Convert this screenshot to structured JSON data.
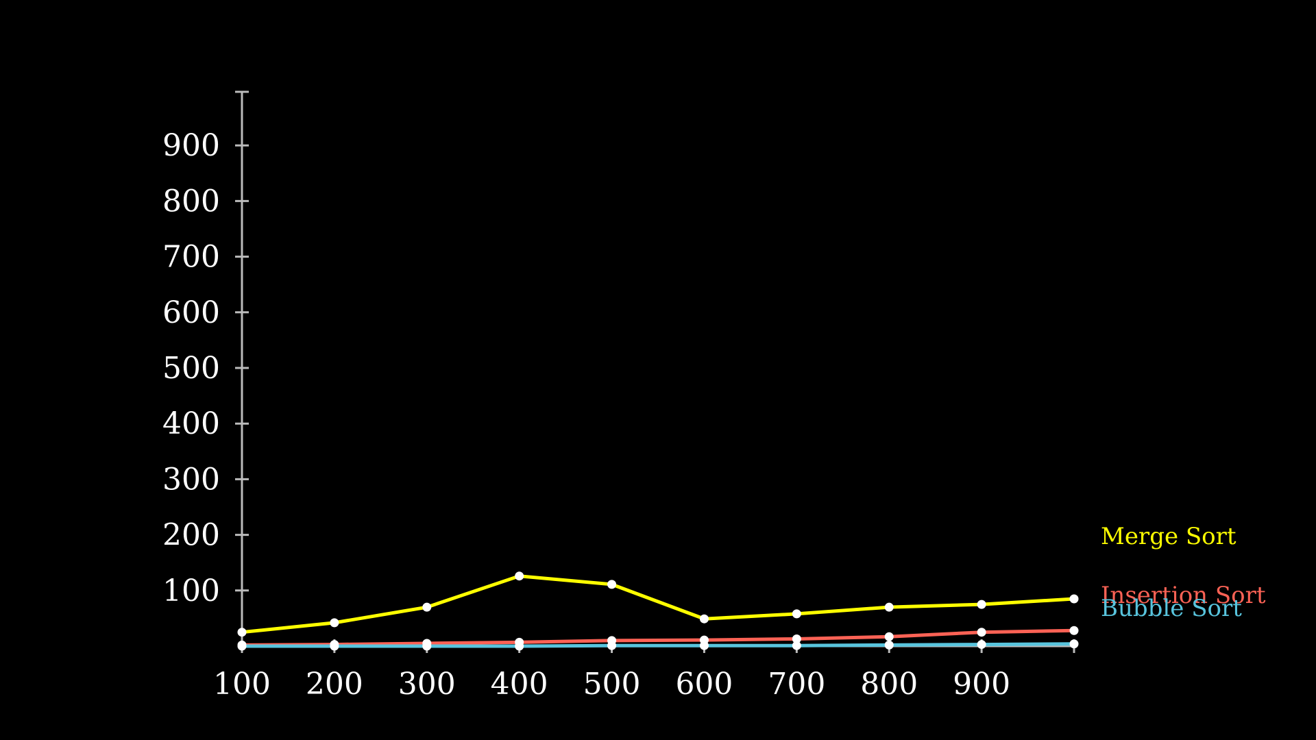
{
  "chart_data": {
    "type": "line",
    "title": "",
    "xlabel": "",
    "ylabel": "",
    "x": [
      100,
      200,
      300,
      400,
      500,
      600,
      700,
      800,
      900,
      1000
    ],
    "xticks": [
      "100",
      "200",
      "300",
      "400",
      "500",
      "600",
      "700",
      "800",
      "900"
    ],
    "yticks": [
      "100",
      "200",
      "300",
      "400",
      "500",
      "600",
      "700",
      "800",
      "900"
    ],
    "xlim": [
      100,
      1000
    ],
    "ylim": [
      0,
      1000
    ],
    "grid": false,
    "legend": "right",
    "background": "#000000",
    "axis_color": "#bbbbbb",
    "point_color": "#ffffff",
    "series": [
      {
        "name": "Merge Sort",
        "color": "#ffff00",
        "values": [
          25,
          42,
          70,
          126,
          111,
          49,
          58,
          70,
          75,
          85
        ]
      },
      {
        "name": "Insertion Sort",
        "color": "#fc6255",
        "values": [
          2,
          3,
          5,
          7,
          10,
          11,
          13,
          17,
          25,
          28
        ]
      },
      {
        "name": "Bubble Sort",
        "color": "#58c4dd",
        "values": [
          0,
          0,
          0,
          0,
          1,
          1,
          1,
          2,
          3,
          4
        ]
      }
    ]
  }
}
